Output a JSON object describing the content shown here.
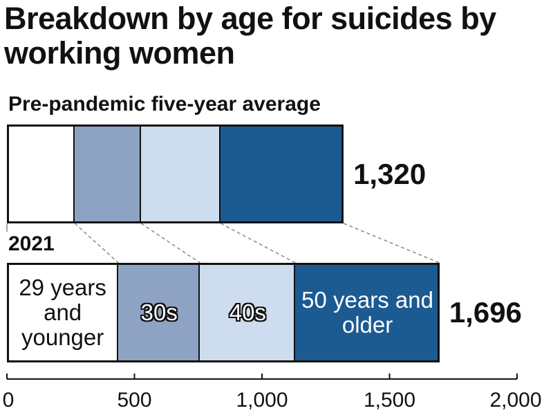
{
  "chart_data": {
    "type": "stacked-bar",
    "title": "Breakdown by age for suicides by working women",
    "categories": [
      "Pre-pandemic five-year average",
      "2021"
    ],
    "series": [
      {
        "name": "29 years and younger",
        "color": "#ffffff",
        "values": [
          266,
          437
        ]
      },
      {
        "name": "30s",
        "color": "#8ea3c4",
        "values": [
          260,
          320
        ]
      },
      {
        "name": "40s",
        "color": "#cddcee",
        "values": [
          312,
          374
        ]
      },
      {
        "name": "50 years and older",
        "color": "#1c5a92",
        "values": [
          482,
          565
        ]
      }
    ],
    "totals": {
      "values": [
        1320,
        1696
      ],
      "value_labels": [
        "1,320",
        "1,696"
      ]
    },
    "xlim": [
      0,
      2000
    ],
    "xticks": [
      0,
      500,
      {
        "value": 1000,
        "label": "1,000"
      },
      {
        "value": 1500,
        "label": "1,500"
      },
      {
        "value": 2000,
        "label": "2,000"
      }
    ]
  }
}
